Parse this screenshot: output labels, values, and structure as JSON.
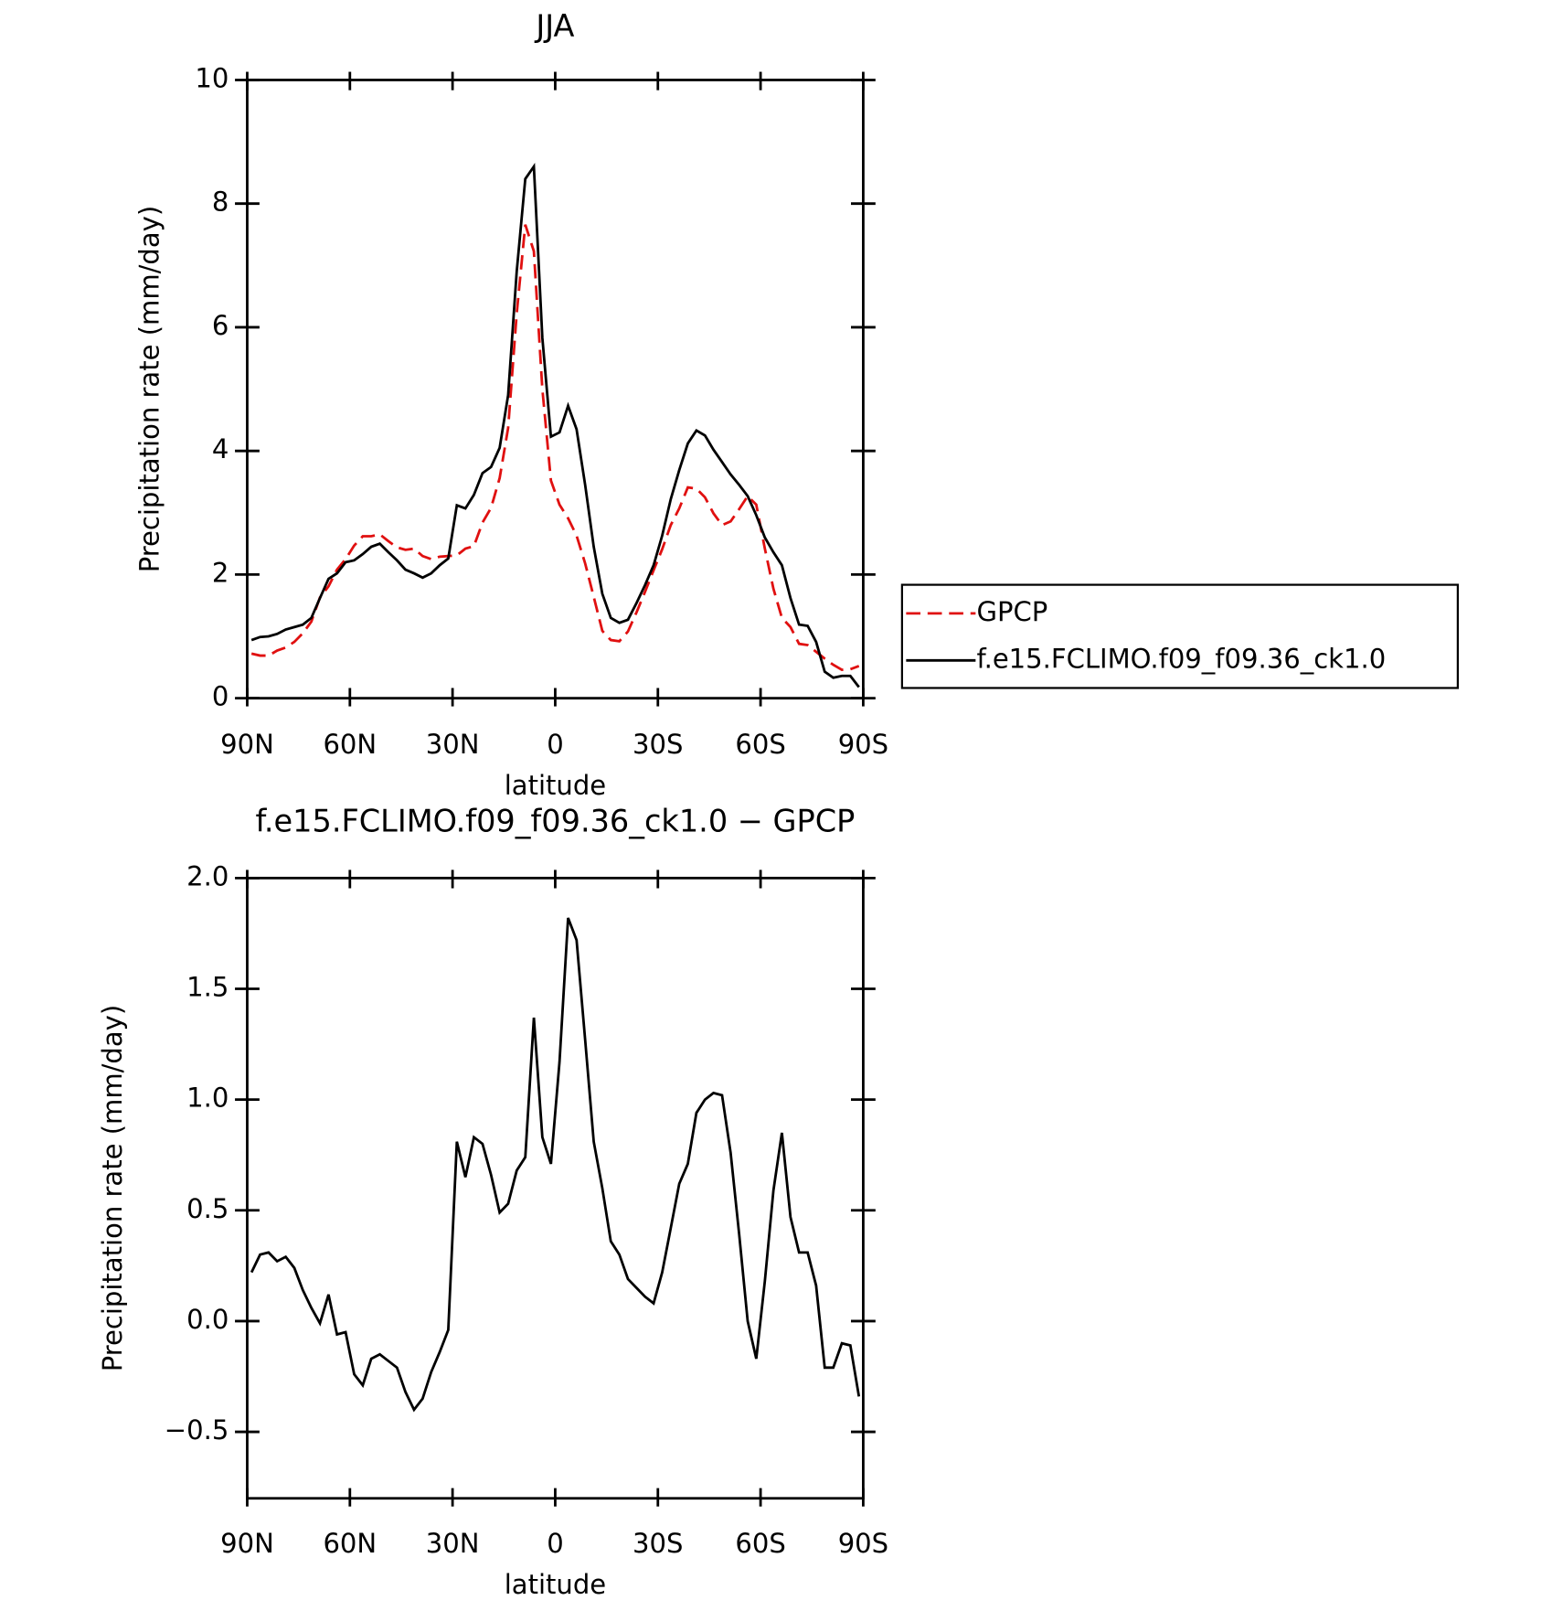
{
  "chart_data": [
    {
      "type": "line",
      "title": "JJA",
      "xlabel": "latitude",
      "ylabel": "Precipitation rate (mm/day)",
      "x": [
        88.75,
        86.25,
        83.75,
        81.25,
        78.75,
        76.25,
        73.75,
        71.25,
        68.75,
        66.25,
        63.75,
        61.25,
        58.75,
        56.25,
        53.75,
        51.25,
        48.75,
        46.25,
        43.75,
        41.25,
        38.75,
        36.25,
        33.75,
        31.25,
        28.75,
        26.25,
        23.75,
        21.25,
        18.75,
        16.25,
        13.75,
        11.25,
        8.75,
        6.25,
        3.75,
        1.25,
        -1.25,
        -3.75,
        -6.25,
        -8.75,
        -11.25,
        -13.75,
        -16.25,
        -18.75,
        -21.25,
        -23.75,
        -26.25,
        -28.75,
        -31.25,
        -33.75,
        -36.25,
        -38.75,
        -41.25,
        -43.75,
        -46.25,
        -48.75,
        -51.25,
        -53.75,
        -56.25,
        -58.75,
        -61.25,
        -63.75,
        -66.25,
        -68.75,
        -71.25,
        -73.75,
        -76.25,
        -78.75,
        -81.25,
        -83.75,
        -86.25,
        -88.75
      ],
      "xlim": [
        90,
        -90
      ],
      "xticks": [
        {
          "value": 90,
          "label": "90N"
        },
        {
          "value": 60,
          "label": "60N"
        },
        {
          "value": 30,
          "label": "30N"
        },
        0,
        {
          "value": -30,
          "label": "30S"
        },
        {
          "value": -60,
          "label": "60S"
        },
        {
          "value": -90,
          "label": "90S"
        }
      ],
      "ylim": [
        0,
        10
      ],
      "yticks": [
        0,
        2,
        4,
        6,
        8,
        10
      ],
      "legend": "right",
      "series": [
        {
          "name": "GPCP",
          "color": "#e01010",
          "dashed": true,
          "values": [
            0.72,
            0.69,
            0.69,
            0.77,
            0.82,
            0.91,
            1.05,
            1.24,
            1.63,
            1.81,
            2.08,
            2.25,
            2.47,
            2.62,
            2.62,
            2.65,
            2.54,
            2.44,
            2.4,
            2.42,
            2.3,
            2.25,
            2.29,
            2.3,
            2.31,
            2.42,
            2.46,
            2.84,
            3.08,
            3.56,
            4.37,
            6.22,
            7.66,
            7.23,
            5.0,
            3.52,
            3.13,
            2.91,
            2.63,
            2.18,
            1.64,
            1.09,
            0.94,
            0.92,
            1.08,
            1.39,
            1.72,
            2.07,
            2.41,
            2.8,
            3.07,
            3.41,
            3.39,
            3.25,
            2.99,
            2.8,
            2.86,
            3.06,
            3.27,
            3.13,
            2.42,
            1.77,
            1.3,
            1.15,
            0.88,
            0.86,
            0.75,
            0.64,
            0.54,
            0.46,
            0.47,
            0.52
          ]
        },
        {
          "name": "f.e15.FCLIMO.f09_f09.36_ck1.0",
          "color": "#000000",
          "dashed": false,
          "values": [
            0.94,
            0.99,
            1.0,
            1.04,
            1.11,
            1.15,
            1.19,
            1.3,
            1.62,
            1.93,
            2.02,
            2.2,
            2.23,
            2.33,
            2.45,
            2.5,
            2.36,
            2.23,
            2.08,
            2.02,
            1.95,
            2.02,
            2.15,
            2.26,
            3.12,
            3.07,
            3.29,
            3.64,
            3.74,
            4.05,
            4.9,
            6.9,
            8.4,
            8.6,
            5.83,
            4.23,
            4.3,
            4.73,
            4.35,
            3.45,
            2.45,
            1.69,
            1.3,
            1.22,
            1.27,
            1.54,
            1.83,
            2.15,
            2.63,
            3.22,
            3.69,
            4.12,
            4.33,
            4.25,
            4.02,
            3.82,
            3.62,
            3.45,
            3.27,
            2.96,
            2.6,
            2.36,
            2.15,
            1.62,
            1.19,
            1.17,
            0.91,
            0.43,
            0.33,
            0.36,
            0.36,
            0.18
          ]
        }
      ]
    },
    {
      "type": "line",
      "title": "f.e15.FCLIMO.f09_f09.36_ck1.0 − GPCP",
      "xlabel": "latitude",
      "ylabel": "Precipitation rate (mm/day)",
      "x": [
        88.75,
        86.25,
        83.75,
        81.25,
        78.75,
        76.25,
        73.75,
        71.25,
        68.75,
        66.25,
        63.75,
        61.25,
        58.75,
        56.25,
        53.75,
        51.25,
        48.75,
        46.25,
        43.75,
        41.25,
        38.75,
        36.25,
        33.75,
        31.25,
        28.75,
        26.25,
        23.75,
        21.25,
        18.75,
        16.25,
        13.75,
        11.25,
        8.75,
        6.25,
        3.75,
        1.25,
        -1.25,
        -3.75,
        -6.25,
        -8.75,
        -11.25,
        -13.75,
        -16.25,
        -18.75,
        -21.25,
        -23.75,
        -26.25,
        -28.75,
        -31.25,
        -33.75,
        -36.25,
        -38.75,
        -41.25,
        -43.75,
        -46.25,
        -48.75,
        -51.25,
        -53.75,
        -56.25,
        -58.75,
        -61.25,
        -63.75,
        -66.25,
        -68.75,
        -71.25,
        -73.75,
        -76.25,
        -78.75,
        -81.25,
        -83.75,
        -86.25,
        -88.75
      ],
      "xlim": [
        90,
        -90
      ],
      "xticks": [
        {
          "value": 90,
          "label": "90N"
        },
        {
          "value": 60,
          "label": "60N"
        },
        {
          "value": 30,
          "label": "30N"
        },
        0,
        {
          "value": -30,
          "label": "30S"
        },
        {
          "value": -60,
          "label": "60S"
        },
        {
          "value": -90,
          "label": "90S"
        }
      ],
      "ylim": [
        -0.8,
        2.0
      ],
      "yticks": [
        {
          "value": -0.5,
          "label": "−0.5"
        },
        {
          "value": 0,
          "label": "0.0"
        },
        0.5,
        {
          "value": 1,
          "label": "1.0"
        },
        1.5,
        {
          "value": 2,
          "label": "2.0"
        }
      ],
      "series": [
        {
          "color": "#000000",
          "dashed": false,
          "values": [
            0.22,
            0.3,
            0.31,
            0.27,
            0.29,
            0.24,
            0.14,
            0.06,
            -0.01,
            0.12,
            -0.06,
            -0.05,
            -0.24,
            -0.29,
            -0.17,
            -0.15,
            -0.18,
            -0.21,
            -0.32,
            -0.4,
            -0.35,
            -0.23,
            -0.14,
            -0.04,
            0.81,
            0.65,
            0.83,
            0.8,
            0.66,
            0.49,
            0.53,
            0.68,
            0.74,
            1.37,
            0.83,
            0.71,
            1.17,
            1.82,
            1.72,
            1.27,
            0.81,
            0.6,
            0.36,
            0.3,
            0.19,
            0.15,
            0.11,
            0.08,
            0.22,
            0.42,
            0.62,
            0.71,
            0.94,
            1.0,
            1.03,
            1.02,
            0.76,
            0.39,
            0.0,
            -0.17,
            0.18,
            0.59,
            0.85,
            0.47,
            0.31,
            0.31,
            0.16,
            -0.21,
            -0.21,
            -0.1,
            -0.11,
            -0.34
          ]
        }
      ]
    }
  ]
}
